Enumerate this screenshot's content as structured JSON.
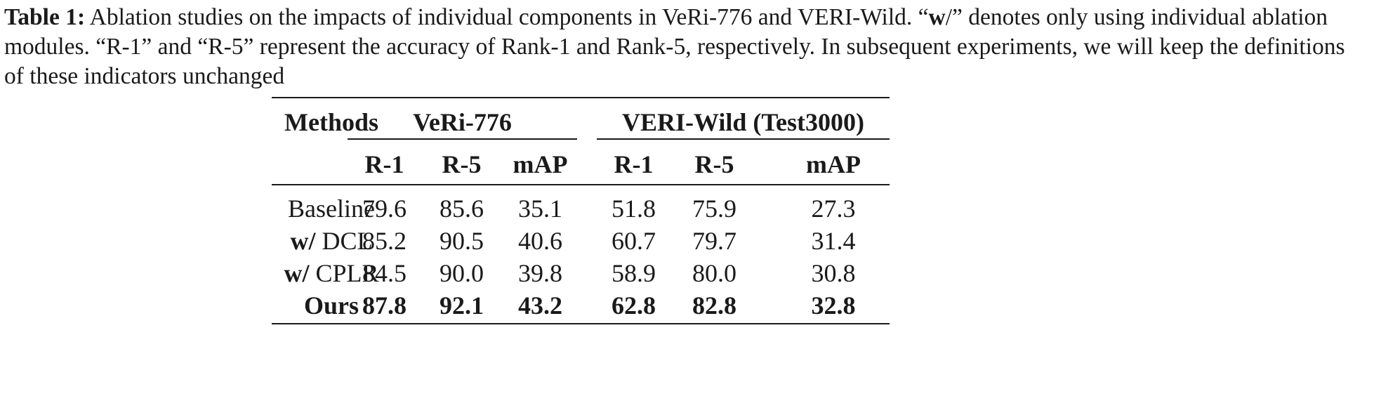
{
  "caption": {
    "label": "Table 1:",
    "text_a": " Ablation studies on the impacts of individual components in VeRi-776 and VERI-Wild. “",
    "bold_w": "w",
    "text_b": "/” denotes only using individual ablation modules. “R-1” and “R-5” represent the accuracy of Rank-1 and Rank-5, respectively. In subsequent experiments, we will keep the definitions of these indicators unchanged"
  },
  "table": {
    "methods_header": "Methods",
    "group_headers": [
      "VeRi-776",
      "VERI-Wild (Test3000)"
    ],
    "sub_headers": [
      "R-1",
      "R-5",
      "mAP",
      "R-1",
      "R-5",
      "mAP"
    ],
    "rows": [
      {
        "prefix": "",
        "name": "Baseline",
        "values": [
          "79.6",
          "85.6",
          "35.1",
          "51.8",
          "75.9",
          "27.3"
        ],
        "bold": false
      },
      {
        "prefix": "w/",
        "name": " DCL",
        "values": [
          "85.2",
          "90.5",
          "40.6",
          "60.7",
          "79.7",
          "31.4"
        ],
        "bold": false
      },
      {
        "prefix": "w/",
        "name": " CPLR",
        "values": [
          "84.5",
          "90.0",
          "39.8",
          "58.9",
          "80.0",
          "30.8"
        ],
        "bold": false
      },
      {
        "prefix": "",
        "name": "Ours",
        "values": [
          "87.8",
          "92.1",
          "43.2",
          "62.8",
          "82.8",
          "32.8"
        ],
        "bold": true
      }
    ]
  }
}
